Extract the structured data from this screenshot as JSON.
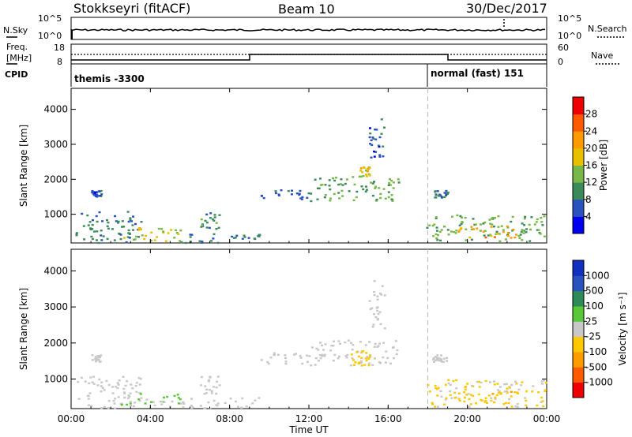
{
  "header": {
    "station": "Stokkseyri (fitACF)",
    "beam": "Beam 10",
    "date": "30/Dec/2017"
  },
  "noise_panel": {
    "left_label": "N.Sky",
    "right_label": "N.Search",
    "left_ticks": [
      "10^5",
      "10^0"
    ],
    "right_ticks": [
      "10^5",
      "10^0"
    ]
  },
  "freq_panel": {
    "left_label_top": "Freq.",
    "left_label_bottom": "[MHz]",
    "cpid_label": "CPID",
    "right_label": "Nave",
    "left_ticks": [
      "18",
      "8"
    ],
    "right_ticks": [
      "60",
      "0"
    ]
  },
  "cpid": [
    {
      "label": "themis -3300",
      "start_hour": 0
    },
    {
      "label": "normal (fast) 151",
      "start_hour": 18
    }
  ],
  "chart_data": [
    {
      "type": "heatmap",
      "title": "Power",
      "xlabel": "",
      "ylabel": "Slant Range [km]",
      "xlim": [
        0,
        24
      ],
      "ylim": [
        180,
        4600
      ],
      "x_ticks": [
        "00:00",
        "04:00",
        "08:00",
        "12:00",
        "16:00",
        "20:00",
        "00:00"
      ],
      "y_ticks": [
        1000,
        2000,
        3000,
        4000
      ],
      "colorbar": {
        "label": "Power [dB]",
        "range": [
          0,
          32
        ],
        "ticks": [
          "28",
          "24",
          "20",
          "16",
          "12",
          "8",
          "4"
        ],
        "colors": [
          "#0000ee",
          "#2a52be",
          "#3a8a5a",
          "#78b848",
          "#e8c000",
          "#ff9a00",
          "#ff5a00",
          "#ee0000"
        ]
      },
      "regions": [
        {
          "t0": 0.2,
          "t1": 3.5,
          "r0": 200,
          "r1": 1100,
          "value": 9
        },
        {
          "t0": 2.5,
          "t1": 5.5,
          "r0": 250,
          "r1": 650,
          "value": 16
        },
        {
          "t0": 5.5,
          "t1": 9.5,
          "r0": 200,
          "r1": 500,
          "value": 8
        },
        {
          "t0": 6.5,
          "t1": 7.5,
          "r0": 600,
          "r1": 1100,
          "value": 10
        },
        {
          "t0": 1.0,
          "t1": 1.5,
          "r0": 1500,
          "r1": 1700,
          "value": 6
        },
        {
          "t0": 9.5,
          "t1": 12.0,
          "r0": 1450,
          "r1": 1750,
          "value": 7
        },
        {
          "t0": 12.0,
          "t1": 16.5,
          "r0": 1400,
          "r1": 2100,
          "value": 12
        },
        {
          "t0": 14.5,
          "t1": 15.2,
          "r0": 2100,
          "r1": 2400,
          "value": 18
        },
        {
          "t0": 15.0,
          "t1": 15.8,
          "r0": 2400,
          "r1": 3800,
          "value": 6
        },
        {
          "t0": 17.9,
          "t1": 24.0,
          "r0": 250,
          "r1": 1000,
          "value": 13
        },
        {
          "t0": 19.5,
          "t1": 22.5,
          "r0": 350,
          "r1": 700,
          "value": 22
        },
        {
          "t0": 18.2,
          "t1": 19.0,
          "r0": 1500,
          "r1": 1700,
          "value": 8
        }
      ]
    },
    {
      "type": "heatmap",
      "title": "Velocity",
      "xlabel": "Time UT",
      "ylabel": "Slant Range [km]",
      "xlim": [
        0,
        24
      ],
      "ylim": [
        180,
        4600
      ],
      "x_ticks": [
        "00:00",
        "04:00",
        "08:00",
        "12:00",
        "16:00",
        "20:00",
        "00:00"
      ],
      "y_ticks": [
        1000,
        2000,
        3000,
        4000
      ],
      "colorbar": {
        "label": "Velocity [m s⁻¹]",
        "range": [
          -1500,
          1500
        ],
        "ticks": [
          "1000",
          "500",
          "100",
          "25",
          "-25",
          "-100",
          "-500",
          "-1000"
        ],
        "colors": [
          "#ee0000",
          "#ff5a00",
          "#ff9a00",
          "#ffc800",
          "#c8c8c8",
          "#58c838",
          "#2e8b57",
          "#2a52be",
          "#1030c0"
        ]
      },
      "regions": [
        {
          "t0": 0.2,
          "t1": 3.5,
          "r0": 200,
          "r1": 1100,
          "value": -40
        },
        {
          "t0": 2.5,
          "t1": 5.5,
          "r0": 250,
          "r1": 650,
          "value": 150
        },
        {
          "t0": 5.5,
          "t1": 9.5,
          "r0": 200,
          "r1": 500,
          "value": -60
        },
        {
          "t0": 6.5,
          "t1": 7.5,
          "r0": 600,
          "r1": 1100,
          "value": 0
        },
        {
          "t0": 1.0,
          "t1": 1.5,
          "r0": 1500,
          "r1": 1700,
          "value": 0
        },
        {
          "t0": 9.5,
          "t1": 12.0,
          "r0": 1450,
          "r1": 1750,
          "value": 0
        },
        {
          "t0": 12.0,
          "t1": 16.5,
          "r0": 1400,
          "r1": 2100,
          "value": 0
        },
        {
          "t0": 14.0,
          "t1": 15.2,
          "r0": 1400,
          "r1": 1800,
          "value": -300
        },
        {
          "t0": 15.0,
          "t1": 15.8,
          "r0": 2400,
          "r1": 3800,
          "value": 0
        },
        {
          "t0": 17.9,
          "t1": 24.0,
          "r0": 250,
          "r1": 1000,
          "value": -200
        },
        {
          "t0": 19.5,
          "t1": 22.5,
          "r0": 350,
          "r1": 700,
          "value": -400
        },
        {
          "t0": 18.2,
          "t1": 19.0,
          "r0": 1500,
          "r1": 1700,
          "value": 0
        }
      ]
    }
  ]
}
